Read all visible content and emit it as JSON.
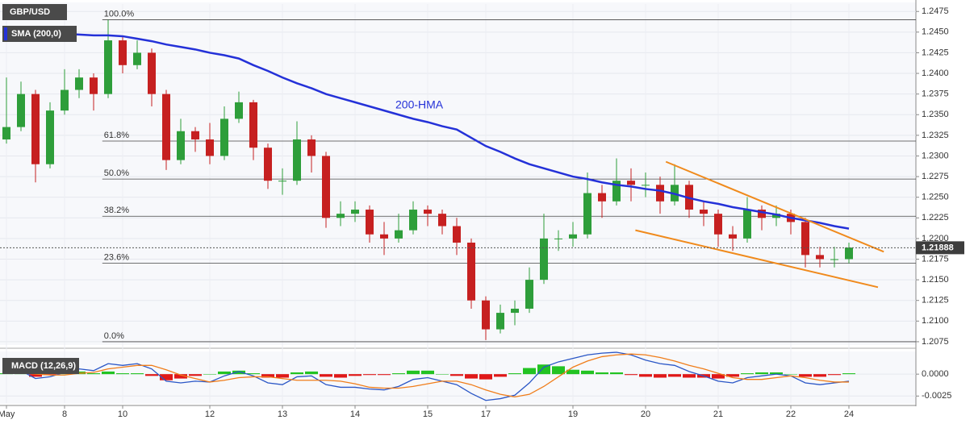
{
  "chart_data": {
    "type": "candlestick",
    "symbol": "GBP/USD",
    "categories": [
      "May",
      null,
      null,
      null,
      "8",
      null,
      null,
      null,
      "10",
      null,
      null,
      null,
      null,
      null,
      "12",
      null,
      null,
      null,
      null,
      "13",
      null,
      null,
      null,
      null,
      "14",
      null,
      null,
      null,
      null,
      "15",
      null,
      null,
      null,
      "17",
      null,
      null,
      null,
      null,
      null,
      "19",
      null,
      null,
      null,
      null,
      "20",
      null,
      null,
      null,
      null,
      "21",
      null,
      null,
      null,
      null,
      "22",
      null,
      null,
      null,
      "24"
    ],
    "open": [
      1.232,
      1.2335,
      1.2375,
      1.229,
      1.2355,
      1.238,
      1.2395,
      1.2375,
      1.244,
      1.241,
      1.2425,
      1.2375,
      1.2295,
      1.233,
      1.232,
      1.23,
      1.2345,
      1.2365,
      1.231,
      1.227,
      1.227,
      1.232,
      1.23,
      1.2225,
      1.223,
      1.2235,
      1.2205,
      1.22,
      1.221,
      1.2235,
      1.223,
      1.2215,
      1.2195,
      1.2125,
      1.209,
      1.211,
      1.2115,
      1.215,
      1.22,
      1.22,
      1.2205,
      1.2255,
      1.2245,
      1.227,
      1.2265,
      1.2265,
      1.2245,
      1.2265,
      1.2235,
      1.223,
      1.2205,
      1.22,
      1.2235,
      1.2225,
      1.223,
      1.222,
      1.218,
      1.2175,
      1.2175
    ],
    "high": [
      1.2395,
      1.239,
      1.238,
      1.2365,
      1.2405,
      1.2405,
      1.24,
      1.2465,
      1.2445,
      1.244,
      1.243,
      1.238,
      1.2345,
      1.2335,
      1.234,
      1.236,
      1.2378,
      1.2368,
      1.2315,
      1.2285,
      1.2342,
      1.2325,
      1.2305,
      1.2245,
      1.2245,
      1.224,
      1.222,
      1.223,
      1.2245,
      1.224,
      1.2235,
      1.2225,
      1.22,
      1.213,
      1.212,
      1.2125,
      1.2165,
      1.223,
      1.221,
      1.222,
      1.228,
      1.2265,
      1.2297,
      1.2285,
      1.228,
      1.2275,
      1.229,
      1.227,
      1.2245,
      1.2235,
      1.2215,
      1.225,
      1.224,
      1.224,
      1.2235,
      1.2225,
      1.219,
      1.219,
      1.2195
    ],
    "low": [
      1.2315,
      1.233,
      1.2268,
      1.2285,
      1.235,
      1.237,
      1.2355,
      1.237,
      1.24,
      1.2405,
      1.236,
      1.2283,
      1.229,
      1.2305,
      1.229,
      1.2295,
      1.234,
      1.2295,
      1.226,
      1.2253,
      1.2265,
      1.228,
      1.2213,
      1.2215,
      1.222,
      1.2195,
      1.218,
      1.2195,
      1.2205,
      1.2215,
      1.2205,
      1.218,
      1.2115,
      1.2077,
      1.2085,
      1.2095,
      1.211,
      1.2145,
      1.2185,
      1.219,
      1.22,
      1.2225,
      1.224,
      1.2245,
      1.225,
      1.223,
      1.224,
      1.2225,
      1.2215,
      1.219,
      1.2185,
      1.2195,
      1.221,
      1.2215,
      1.2205,
      1.2165,
      1.2165,
      1.2165,
      1.217
    ],
    "close": [
      1.2335,
      1.2375,
      1.229,
      1.2355,
      1.238,
      1.2395,
      1.2375,
      1.244,
      1.241,
      1.2425,
      1.2375,
      1.2295,
      1.233,
      1.232,
      1.23,
      1.2345,
      1.2365,
      1.231,
      1.227,
      1.227,
      1.232,
      1.23,
      1.2225,
      1.223,
      1.2235,
      1.2205,
      1.22,
      1.221,
      1.2235,
      1.223,
      1.2215,
      1.2195,
      1.2125,
      1.209,
      1.211,
      1.2115,
      1.215,
      1.22,
      1.22,
      1.2205,
      1.2255,
      1.2245,
      1.227,
      1.2265,
      1.2265,
      1.2245,
      1.2265,
      1.2235,
      1.223,
      1.2205,
      1.22,
      1.2235,
      1.2225,
      1.223,
      1.222,
      1.218,
      1.2175,
      1.2175,
      1.2189
    ],
    "up_color": "#2e9e3a",
    "down_color": "#c62020",
    "overlay": {
      "name": "SMA (200,0)",
      "label": "200-HMA",
      "color": "#2431d8",
      "values": [
        1.245,
        1.245,
        1.2449,
        1.2449,
        1.2448,
        1.2447,
        1.2446,
        1.2446,
        1.2445,
        1.2442,
        1.2439,
        1.2435,
        1.2432,
        1.2429,
        1.2425,
        1.2422,
        1.2418,
        1.241,
        1.2403,
        1.2395,
        1.2388,
        1.2382,
        1.2375,
        1.237,
        1.2365,
        1.236,
        1.2355,
        1.235,
        1.2345,
        1.2341,
        1.2336,
        1.2332,
        1.2322,
        1.2312,
        1.2305,
        1.2297,
        1.229,
        1.2285,
        1.228,
        1.2275,
        1.2272,
        1.2268,
        1.2265,
        1.2263,
        1.226,
        1.2258,
        1.2254,
        1.2249,
        1.2245,
        1.2242,
        1.2238,
        1.2235,
        1.2232,
        1.2229,
        1.2225,
        1.2222,
        1.2219,
        1.2215,
        1.2212
      ]
    },
    "fib_levels": [
      {
        "label": "100.0%",
        "value": 1.2465
      },
      {
        "label": "61.8%",
        "value": 1.2318
      },
      {
        "label": "50.0%",
        "value": 1.2272
      },
      {
        "label": "38.2%",
        "value": 1.2227
      },
      {
        "label": "23.6%",
        "value": 1.217
      },
      {
        "label": "0.0%",
        "value": 1.2075
      }
    ],
    "trendlines": [
      {
        "x": [
          45.4,
          60.4
        ],
        "y": [
          1.2293,
          1.2184
        ]
      },
      {
        "x": [
          43.3,
          60.0
        ],
        "y": [
          1.221,
          1.2141
        ]
      }
    ],
    "trendline_color": "#f08a1c",
    "last_price": 1.21888,
    "ylim": [
      1.2072,
      1.2484
    ],
    "yticks": [
      1.2075,
      {
        "value": 1.21,
        "label": "1.2100"
      },
      1.2125,
      {
        "value": 1.215,
        "label": "1.2150"
      },
      1.2175,
      {
        "value": 1.22,
        "label": "1.2200"
      },
      1.2225,
      {
        "value": 1.225,
        "label": "1.2250"
      },
      1.2275,
      {
        "value": 1.23,
        "label": "1.2300"
      },
      1.2325,
      {
        "value": 1.235,
        "label": "1.2350"
      },
      1.2375,
      {
        "value": 1.24,
        "label": "1.2400"
      },
      1.2425,
      {
        "value": 1.245,
        "label": "1.2450"
      },
      1.2475
    ],
    "grid": true,
    "macd": {
      "title": "MACD (12,26,9)",
      "ylim": [
        -0.0033,
        0.0025
      ],
      "yticks": [
        {
          "value": 0,
          "label": "0.0000"
        },
        -0.0025
      ],
      "up_color": "#22c322",
      "down_color": "#e01818",
      "histogram": [
        0.0001,
        0.0001,
        -0.0003,
        -0.0001,
        0.0002,
        0.0003,
        0.0001,
        0.0003,
        0.0001,
        0.0001,
        -0.0002,
        -0.0007,
        -0.0005,
        -0.0002,
        0,
        0.0003,
        0.0004,
        0.0001,
        -0.0004,
        -0.0004,
        0.0002,
        0.0003,
        -0.0003,
        -0.0004,
        -0.0002,
        -0.0001,
        -0.0001,
        0.0001,
        0.0004,
        0.0004,
        0,
        -0.0002,
        -0.0005,
        -0.0006,
        -0.0003,
        0.0001,
        0.0007,
        0.0011,
        0.0009,
        0.0005,
        0.0004,
        0.0002,
        0.0002,
        -0.0001,
        -0.0003,
        -0.0004,
        -0.0003,
        -0.0004,
        -0.0004,
        -0.0005,
        -0.0003,
        0.0001,
        0.0002,
        0.0002,
        0,
        -0.0003,
        -0.0003,
        -0.0001,
        0.0001
      ],
      "lines": [
        {
          "color": "#2a56c6",
          "values": [
            0.0002,
            0.0004,
            -0.0005,
            -0.0003,
            0.0002,
            0.0006,
            0.0004,
            0.0012,
            0.001,
            0.0012,
            0.0006,
            -0.0008,
            -0.001,
            -0.0008,
            -0.0009,
            -0.0002,
            0.0003,
            -0.0002,
            -0.001,
            -0.0012,
            -0.0003,
            -0.0002,
            -0.0012,
            -0.0015,
            -0.0015,
            -0.0017,
            -0.0018,
            -0.0014,
            -0.0006,
            -0.0004,
            -0.0008,
            -0.0012,
            -0.0022,
            -0.003,
            -0.0028,
            -0.0024,
            -0.001,
            0.0008,
            0.0014,
            0.0018,
            0.0022,
            0.0024,
            0.0025,
            0.0022,
            0.0016,
            0.0012,
            0.001,
            0.0003,
            -0.0002,
            -0.0008,
            -0.001,
            -0.0004,
            -0.0002,
            0,
            -0.0002,
            -0.001,
            -0.0012,
            -0.001,
            -0.0008
          ]
        },
        {
          "color": "#f07d1a",
          "values": [
            0.0001,
            0.0002,
            0,
            -0.0001,
            -0.0001,
            0.0001,
            0.0002,
            0.0006,
            0.0008,
            0.001,
            0.001,
            0.0005,
            -0.0001,
            -0.0005,
            -0.0009,
            -0.0007,
            -0.0004,
            -0.0003,
            -0.0003,
            -0.0005,
            -0.0007,
            -0.0007,
            -0.0007,
            -0.0008,
            -0.0011,
            -0.0015,
            -0.0016,
            -0.0016,
            -0.0014,
            -0.0011,
            -0.0008,
            -0.0008,
            -0.0012,
            -0.0018,
            -0.0023,
            -0.0026,
            -0.0023,
            -0.0014,
            -0.0003,
            0.0008,
            0.0015,
            0.002,
            0.0022,
            0.0023,
            0.0022,
            0.0019,
            0.0015,
            0.001,
            0.0006,
            0.0001,
            -0.0004,
            -0.0006,
            -0.0006,
            -0.0004,
            -0.0002,
            -0.0004,
            -0.0007,
            -0.0009,
            -0.0009
          ]
        }
      ]
    }
  }
}
